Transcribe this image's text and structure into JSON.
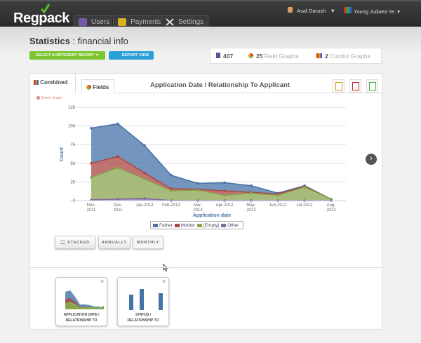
{
  "header": {
    "logo": "Regpack",
    "nav": [
      {
        "label": "Users"
      },
      {
        "label": "Payments"
      },
      {
        "label": "Settings ▾"
      }
    ],
    "user": "Asaf Darash",
    "user_caret": "▼",
    "org": "Young Judaea Ye..▾"
  },
  "page": {
    "title_bold": "Statistics",
    "title_rest": " : financial info",
    "select_report": "SELECT A DIFFERENT REPORT ▼",
    "report_view": "REPORT VIEW"
  },
  "stats": {
    "users": "407",
    "field_graphs_count": "25",
    "field_graphs_label": "Field Graphs",
    "combo_count": "2",
    "combo_label": "Combo Graphs"
  },
  "tabs": {
    "combined": "Combined",
    "fields": "Fields"
  },
  "delete_graph": "Delete Graph",
  "options": {
    "stacked": "STACKED",
    "annually": "ANNUALLY",
    "monthly": "MONTHLY"
  },
  "thumbnails": [
    {
      "line1": "APPLICATION DATE /",
      "line2": "RELATIONSHIP TO"
    },
    {
      "line1": "STATUS /",
      "line2": "RELATIONSHIP TO"
    }
  ],
  "colors": {
    "father": "#4572a7",
    "mother": "#aa4643",
    "empty": "#89a54e",
    "other": "#80699b"
  },
  "chart_data": {
    "type": "area",
    "stacked": true,
    "title": "Application Date / Relationship To Applicant",
    "xlabel": "Application date",
    "ylabel": "Count",
    "ylim": [
      0,
      125
    ],
    "yticks": [
      0,
      25,
      50,
      75,
      100,
      125
    ],
    "categories": [
      "Nov-2011",
      "Dec-2011",
      "Jan-2012",
      "Feb-2012",
      "Mar-2012",
      "Apr-2012",
      "May-2012",
      "Jun-2012",
      "Jul-2012",
      "Aug-2012"
    ],
    "series": [
      {
        "name": "Father",
        "values": [
          47,
          44,
          37,
          18,
          8,
          11,
          9,
          1,
          1,
          0
        ]
      },
      {
        "name": "Mother",
        "values": [
          19,
          15,
          8,
          3,
          1,
          6,
          1,
          2,
          1,
          0
        ]
      },
      {
        "name": "[Empty]",
        "values": [
          30,
          42,
          26,
          13,
          14,
          7,
          10,
          7,
          18,
          2
        ]
      },
      {
        "name": "Other",
        "values": [
          1,
          2,
          3,
          0,
          0,
          0,
          0,
          0,
          0,
          0
        ]
      }
    ],
    "legend_position": "bottom"
  }
}
